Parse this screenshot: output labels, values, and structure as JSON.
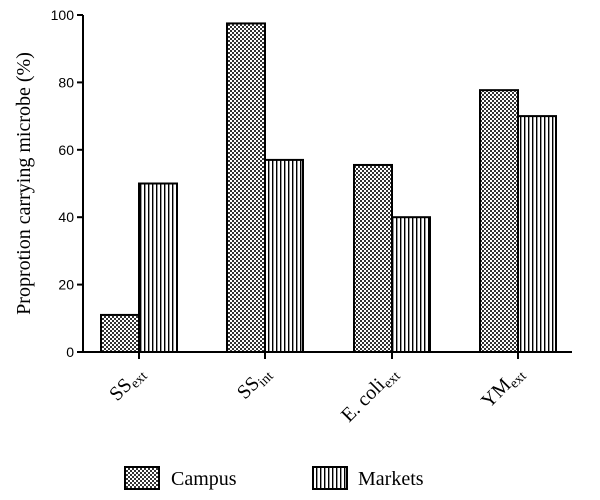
{
  "chart_data": {
    "type": "bar",
    "title": "",
    "xlabel": "",
    "ylabel": "Proprotion carrying microbe (%)",
    "ylim": [
      0,
      100
    ],
    "yticks": [
      0,
      20,
      40,
      60,
      80,
      100
    ],
    "categories": [
      {
        "base": "SS",
        "sub": "ext"
      },
      {
        "base": "SS",
        "sub": "int"
      },
      {
        "base": "E. coli",
        "sub": "ext"
      },
      {
        "base": "YM",
        "sub": "ext"
      }
    ],
    "series": [
      {
        "name": "Campus",
        "pattern": "checker",
        "values": [
          11,
          97.5,
          55.5,
          77.7
        ]
      },
      {
        "name": "Markets",
        "pattern": "vertical-stripes",
        "values": [
          50,
          57,
          40,
          70
        ]
      }
    ],
    "legend_position": "bottom",
    "grid": false
  }
}
